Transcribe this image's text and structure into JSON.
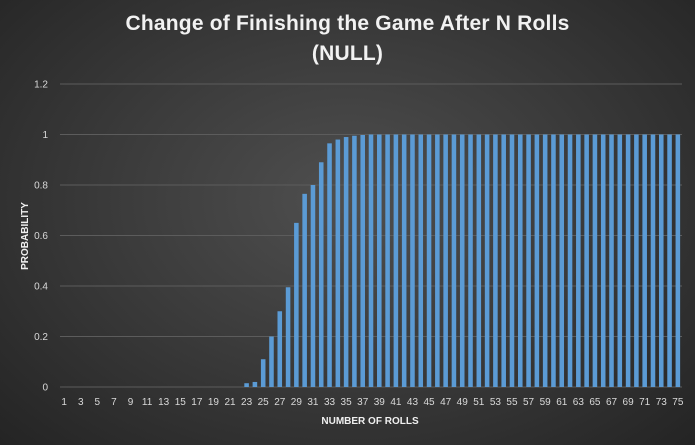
{
  "chart_data": {
    "type": "bar",
    "title": "Change of Finishing the Game After N Rolls",
    "subtitle": "(NULL)",
    "xlabel": "NUMBER OF ROLLS",
    "ylabel": "PROBABILITY",
    "ylim": [
      0,
      1.2
    ],
    "yticks": [
      "0",
      "0.2",
      "0.4",
      "0.6",
      "0.8",
      "1",
      "1.2"
    ],
    "grid": true,
    "legend": "none",
    "bar_color": "#5b9bd5",
    "categories": [
      1,
      2,
      3,
      4,
      5,
      6,
      7,
      8,
      9,
      10,
      11,
      12,
      13,
      14,
      15,
      16,
      17,
      18,
      19,
      20,
      21,
      22,
      23,
      24,
      25,
      26,
      27,
      28,
      29,
      30,
      31,
      32,
      33,
      34,
      35,
      36,
      37,
      38,
      39,
      40,
      41,
      42,
      43,
      44,
      45,
      46,
      47,
      48,
      49,
      50,
      51,
      52,
      53,
      54,
      55,
      56,
      57,
      58,
      59,
      60,
      61,
      62,
      63,
      64,
      65,
      66,
      67,
      68,
      69,
      70,
      71,
      72,
      73,
      74,
      75
    ],
    "values": [
      0,
      0,
      0,
      0,
      0,
      0,
      0,
      0,
      0,
      0,
      0,
      0,
      0,
      0,
      0,
      0,
      0,
      0,
      0,
      0,
      0,
      0,
      0.015,
      0.02,
      0.11,
      0.2,
      0.3,
      0.395,
      0.65,
      0.765,
      0.8,
      0.89,
      0.965,
      0.98,
      0.99,
      0.995,
      0.998,
      1,
      1,
      1,
      1,
      1,
      1,
      1,
      1,
      1,
      1,
      1,
      1,
      1,
      1,
      1,
      1,
      1,
      1,
      1,
      1,
      1,
      1,
      1,
      1,
      1,
      1,
      1,
      1,
      1,
      1,
      1,
      1,
      1,
      1,
      1,
      1,
      1,
      1
    ]
  }
}
